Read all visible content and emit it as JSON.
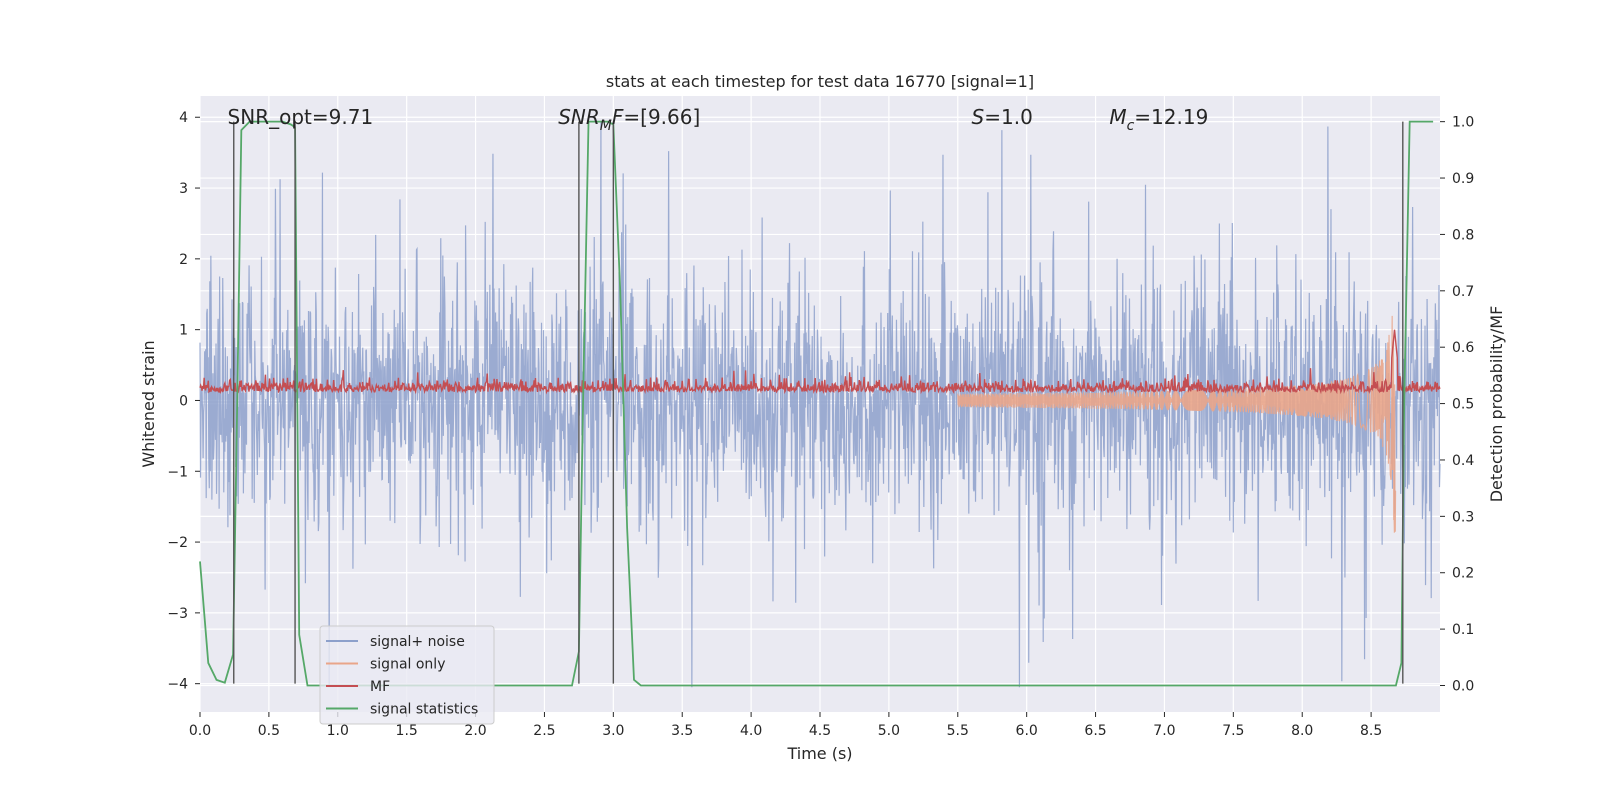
{
  "chart_data": {
    "type": "line",
    "title": "stats at each timestep for test data 16770 [signal=1]",
    "xlabel": "Time (s)",
    "ylabel_left": "Whitened strain",
    "ylabel_right": "Detection probability/MF",
    "xlim": [
      0.0,
      9.0
    ],
    "ylim_left": [
      -4.4,
      4.3
    ],
    "ylim_right": [
      -0.047,
      1.0455
    ],
    "xticks": [
      0.0,
      0.5,
      1.0,
      1.5,
      2.0,
      2.5,
      3.0,
      3.5,
      4.0,
      4.5,
      5.0,
      5.5,
      6.0,
      6.5,
      7.0,
      7.5,
      8.0,
      8.5
    ],
    "xtick_labels": [
      "0.0",
      "0.5",
      "1.0",
      "1.5",
      "2.0",
      "2.5",
      "3.0",
      "3.5",
      "4.0",
      "4.5",
      "5.0",
      "5.5",
      "6.0",
      "6.5",
      "7.0",
      "7.5",
      "8.0",
      "8.5"
    ],
    "yticks_left": [
      -4,
      -3,
      -2,
      -1,
      0,
      1,
      2,
      3,
      4
    ],
    "ytick_labels_left": [
      "−4",
      "−3",
      "−2",
      "−1",
      "0",
      "1",
      "2",
      "3",
      "4"
    ],
    "yticks_right": [
      0.0,
      0.1,
      0.2,
      0.3,
      0.4,
      0.5,
      0.6,
      0.7,
      0.8,
      0.9,
      1.0
    ],
    "ytick_labels_right": [
      "0.0",
      "0.1",
      "0.2",
      "0.3",
      "0.4",
      "0.5",
      "0.6",
      "0.7",
      "0.8",
      "0.9",
      "1.0"
    ],
    "grid": true,
    "legend_position": "lower-left",
    "annotations": [
      {
        "label": "SNR_opt=9.71",
        "x": 0.2,
        "y": 4.0
      },
      {
        "label": "SNR",
        "sub": "M",
        "rest": "F=[9.66]",
        "x": 2.6,
        "y": 4.0
      },
      {
        "label": "S",
        "rest": "=1.0",
        "x": 5.6,
        "y": 4.0
      },
      {
        "label": "M",
        "sub": "c",
        "rest": "=12.19",
        "x": 6.6,
        "y": 4.0
      }
    ],
    "vertical_lines_x": [
      0.245,
      0.69,
      2.75,
      3.0,
      8.73
    ],
    "series": [
      {
        "name": "signal+ noise",
        "color": "#8da0cb",
        "axis": "left",
        "kind": "noise",
        "amplitude": 2.0,
        "x_start": 0.0,
        "x_end": 9.0
      },
      {
        "name": "signal only",
        "color": "#e9a589",
        "axis": "left",
        "kind": "chirp",
        "x_start": 5.5,
        "x_end": 8.68,
        "max_amplitude": 1.9
      },
      {
        "name": "MF",
        "color": "#c44e52",
        "axis": "left",
        "kind": "mf",
        "x_start": 0.0,
        "x_end": 9.0,
        "peaks": [
          {
            "x": 8.67,
            "y": 1.0
          }
        ]
      },
      {
        "name": "signal statistics",
        "color": "#55a868",
        "axis": "right",
        "x": [
          0.0,
          0.06,
          0.12,
          0.18,
          0.24,
          0.27,
          0.3,
          0.36,
          0.42,
          0.48,
          0.54,
          0.6,
          0.66,
          0.69,
          0.72,
          0.78,
          0.84,
          0.9,
          1.0,
          2.5,
          2.7,
          2.75,
          2.78,
          2.82,
          2.9,
          2.96,
          3.0,
          3.05,
          3.1,
          3.15,
          3.2,
          8.5,
          8.68,
          8.72,
          8.74,
          8.78,
          8.8,
          8.85,
          8.9,
          8.95
        ],
        "y": [
          0.22,
          0.04,
          0.01,
          0.005,
          0.055,
          0.5,
          0.985,
          1.0,
          1.0,
          1.0,
          1.0,
          1.0,
          0.995,
          0.99,
          0.09,
          0.0,
          0.0,
          0.0,
          0.0,
          0.0,
          0.0,
          0.06,
          0.5,
          1.0,
          1.0,
          1.0,
          0.995,
          0.7,
          0.28,
          0.01,
          0.0,
          0.0,
          0.0,
          0.04,
          0.5,
          1.0,
          1.0,
          1.0,
          1.0,
          1.0
        ]
      }
    ]
  }
}
